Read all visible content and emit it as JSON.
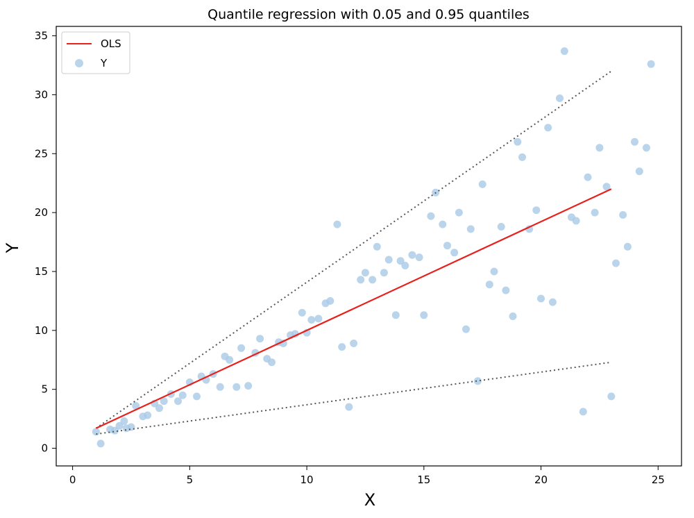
{
  "chart_data": {
    "type": "scatter",
    "title": "Quantile regression with 0.05 and 0.95 quantiles",
    "xlabel": "X",
    "ylabel": "Y",
    "xlim": [
      -0.7,
      26
    ],
    "ylim": [
      -1.5,
      35.8
    ],
    "xticks": [
      "0",
      "5",
      "10",
      "15",
      "20",
      "25"
    ],
    "yticks": [
      "0",
      "5",
      "10",
      "15",
      "20",
      "25",
      "30",
      "35"
    ],
    "legend_position": "top-left",
    "colors": {
      "ols": "#e8201c",
      "points": "#a9cbe6",
      "quantile": "#555555"
    },
    "ols_line": {
      "name": "OLS",
      "x": [
        1,
        23
      ],
      "y": [
        1.7,
        22
      ]
    },
    "quantile_lines": [
      {
        "quantile": 0.95,
        "x": [
          1,
          23
        ],
        "y": [
          1.7,
          32
        ]
      },
      {
        "quantile": 0.05,
        "x": [
          1,
          23
        ],
        "y": [
          1.2,
          7.3
        ]
      }
    ],
    "series": [
      {
        "name": "Y",
        "x": [
          1.0,
          1.2,
          1.6,
          1.8,
          2.0,
          2.2,
          2.3,
          2.5,
          2.7,
          3.0,
          3.2,
          3.5,
          3.7,
          3.9,
          4.2,
          4.5,
          4.7,
          5.0,
          5.3,
          5.5,
          5.7,
          6.0,
          6.3,
          6.5,
          6.7,
          7.0,
          7.2,
          7.5,
          7.8,
          8.0,
          8.3,
          8.5,
          8.8,
          9.0,
          9.3,
          9.5,
          9.8,
          10.0,
          10.2,
          10.5,
          10.8,
          11.0,
          11.3,
          11.5,
          11.8,
          12.0,
          12.3,
          12.5,
          12.8,
          13.0,
          13.3,
          13.5,
          13.8,
          14.0,
          14.2,
          14.5,
          14.8,
          15.0,
          15.3,
          15.5,
          15.8,
          16.0,
          16.3,
          16.5,
          16.8,
          17.0,
          17.3,
          17.5,
          17.8,
          18.0,
          18.3,
          18.5,
          18.8,
          19.0,
          19.2,
          19.5,
          19.8,
          20.0,
          20.3,
          20.5,
          20.8,
          21.0,
          21.3,
          21.5,
          21.8,
          22.0,
          22.3,
          22.5,
          22.8,
          23.0,
          23.2,
          23.5,
          23.7,
          24.0,
          24.2,
          24.5,
          24.7
        ],
        "y": [
          1.4,
          0.4,
          1.6,
          1.5,
          1.9,
          2.3,
          1.7,
          1.8,
          3.6,
          2.7,
          2.8,
          3.8,
          3.4,
          4.0,
          4.6,
          4.0,
          4.5,
          5.6,
          4.4,
          6.1,
          5.8,
          6.3,
          5.2,
          7.8,
          7.5,
          5.2,
          8.5,
          5.3,
          8.1,
          9.3,
          7.6,
          7.3,
          9.0,
          8.9,
          9.6,
          9.7,
          11.5,
          9.8,
          10.9,
          11.0,
          12.3,
          12.5,
          19.0,
          8.6,
          3.5,
          8.9,
          14.3,
          14.9,
          14.3,
          17.1,
          14.9,
          16.0,
          11.3,
          15.9,
          15.5,
          16.4,
          16.2,
          11.3,
          19.7,
          21.7,
          19.0,
          17.2,
          16.6,
          20.0,
          10.1,
          18.6,
          5.7,
          22.4,
          13.9,
          15.0,
          18.8,
          13.4,
          11.2,
          26.0,
          24.7,
          18.6,
          20.2,
          12.7,
          27.2,
          12.4,
          29.7,
          33.7,
          19.6,
          19.3,
          3.1,
          23.0,
          20.0,
          25.5,
          22.2,
          4.4,
          15.7,
          19.8,
          17.1,
          26.0,
          23.5,
          25.5,
          32.6
        ]
      }
    ]
  }
}
